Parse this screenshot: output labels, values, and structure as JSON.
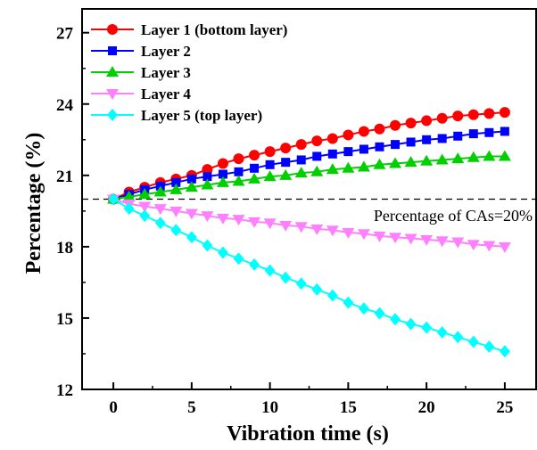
{
  "chart_data": {
    "type": "line",
    "title": "",
    "xlabel": "Vibration time (s)",
    "ylabel": "Percentage (%)",
    "xlim": [
      -2,
      27
    ],
    "ylim": [
      12,
      28
    ],
    "xticks": [
      0,
      5,
      10,
      15,
      20,
      25
    ],
    "yticks": [
      12,
      15,
      18,
      21,
      24,
      27
    ],
    "xtick_labels": [
      "0",
      "5",
      "10",
      "15",
      "20",
      "25"
    ],
    "ytick_labels": [
      "12",
      "15",
      "18",
      "21",
      "24",
      "27"
    ],
    "grid": false,
    "legend_placement": "top-left",
    "x": [
      0,
      1,
      2,
      3,
      4,
      5,
      6,
      7,
      8,
      9,
      10,
      11,
      12,
      13,
      14,
      15,
      16,
      17,
      18,
      19,
      20,
      21,
      22,
      23,
      24,
      25
    ],
    "series": [
      {
        "name": "Layer 1 (bottom layer)",
        "color": "#ff0000",
        "marker": "circle",
        "values": [
          20.0,
          20.3,
          20.5,
          20.7,
          20.85,
          21.0,
          21.25,
          21.5,
          21.7,
          21.85,
          22.0,
          22.15,
          22.3,
          22.45,
          22.55,
          22.7,
          22.85,
          22.95,
          23.1,
          23.2,
          23.3,
          23.4,
          23.5,
          23.55,
          23.6,
          23.65
        ]
      },
      {
        "name": "Layer 2",
        "color": "#0000ff",
        "marker": "square",
        "values": [
          20.0,
          20.2,
          20.4,
          20.55,
          20.7,
          20.85,
          20.95,
          21.05,
          21.15,
          21.3,
          21.45,
          21.55,
          21.65,
          21.8,
          21.9,
          22.0,
          22.1,
          22.2,
          22.3,
          22.4,
          22.5,
          22.55,
          22.65,
          22.75,
          22.8,
          22.85
        ]
      },
      {
        "name": "Layer 3",
        "color": "#00d000",
        "marker": "triangle-up",
        "values": [
          20.0,
          20.1,
          20.2,
          20.3,
          20.4,
          20.5,
          20.6,
          20.7,
          20.75,
          20.85,
          20.95,
          21.0,
          21.1,
          21.15,
          21.25,
          21.3,
          21.35,
          21.45,
          21.5,
          21.55,
          21.6,
          21.65,
          21.7,
          21.75,
          21.8,
          21.8
        ]
      },
      {
        "name": "Layer 4",
        "color": "#ff80ff",
        "marker": "triangle-down",
        "values": [
          20.0,
          19.8,
          19.7,
          19.6,
          19.5,
          19.4,
          19.3,
          19.2,
          19.15,
          19.05,
          19.0,
          18.9,
          18.85,
          18.75,
          18.7,
          18.6,
          18.55,
          18.45,
          18.4,
          18.35,
          18.3,
          18.25,
          18.2,
          18.1,
          18.05,
          18.0
        ]
      },
      {
        "name": "Layer 5 (top layer)",
        "color": "#00ffff",
        "marker": "diamond",
        "values": [
          20.0,
          19.6,
          19.3,
          19.0,
          18.7,
          18.4,
          18.05,
          17.75,
          17.5,
          17.25,
          17.0,
          16.7,
          16.45,
          16.2,
          15.95,
          15.65,
          15.4,
          15.2,
          14.95,
          14.75,
          14.6,
          14.4,
          14.2,
          14.0,
          13.8,
          13.6
        ]
      }
    ],
    "reference_line": {
      "y": 20,
      "style": "dashed",
      "color": "#000000"
    },
    "annotation": "Percentage of CAs=20%"
  }
}
